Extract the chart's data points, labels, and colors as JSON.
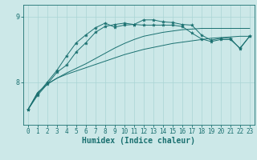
{
  "bg_color": "#cce8e8",
  "line_color": "#1a7070",
  "grid_color": "#aad4d4",
  "xlabel": "Humidex (Indice chaleur)",
  "xlabel_fontsize": 7,
  "tick_fontsize": 5.5,
  "yticks": [
    8,
    9
  ],
  "xlim": [
    -0.5,
    23.5
  ],
  "ylim": [
    7.35,
    9.18
  ],
  "series": [
    {
      "x": [
        0,
        1,
        2,
        3,
        4,
        5,
        6,
        7,
        8,
        9,
        10,
        11,
        12,
        13,
        14,
        15,
        16,
        17,
        18,
        19,
        20,
        21,
        22,
        23
      ],
      "y": [
        7.58,
        7.84,
        7.97,
        8.06,
        8.12,
        8.17,
        8.22,
        8.27,
        8.32,
        8.37,
        8.42,
        8.46,
        8.5,
        8.53,
        8.56,
        8.59,
        8.61,
        8.63,
        8.65,
        8.67,
        8.68,
        8.69,
        8.7,
        8.7
      ],
      "marker": false
    },
    {
      "x": [
        0,
        1,
        2,
        3,
        4,
        5,
        6,
        7,
        8,
        9,
        10,
        11,
        12,
        13,
        14,
        15,
        16,
        17,
        18,
        19,
        20,
        21,
        22,
        23
      ],
      "y": [
        7.58,
        7.84,
        7.97,
        8.06,
        8.14,
        8.21,
        8.28,
        8.36,
        8.44,
        8.52,
        8.59,
        8.65,
        8.7,
        8.73,
        8.76,
        8.78,
        8.8,
        8.81,
        8.82,
        8.82,
        8.82,
        8.82,
        8.82,
        8.82
      ],
      "marker": false
    },
    {
      "x": [
        0,
        1,
        2,
        3,
        4,
        5,
        6,
        7,
        8,
        9,
        10,
        11,
        12,
        13,
        14,
        15,
        16,
        17,
        18,
        19,
        20,
        21,
        22,
        23
      ],
      "y": [
        7.58,
        7.82,
        8.0,
        8.18,
        8.4,
        8.6,
        8.72,
        8.83,
        8.9,
        8.84,
        8.87,
        8.88,
        8.87,
        8.87,
        8.87,
        8.87,
        8.85,
        8.75,
        8.66,
        8.62,
        8.65,
        8.65,
        8.52,
        8.7
      ],
      "marker": true
    },
    {
      "x": [
        0,
        1,
        2,
        3,
        4,
        5,
        6,
        7,
        8,
        9,
        10,
        11,
        12,
        13,
        14,
        15,
        16,
        17,
        18,
        19,
        20,
        21,
        22,
        23
      ],
      "y": [
        7.58,
        7.8,
        7.97,
        8.15,
        8.26,
        8.46,
        8.6,
        8.76,
        8.85,
        8.88,
        8.9,
        8.88,
        8.95,
        8.95,
        8.92,
        8.91,
        8.88,
        8.87,
        8.72,
        8.64,
        8.67,
        8.67,
        8.51,
        8.7
      ],
      "marker": true
    }
  ]
}
